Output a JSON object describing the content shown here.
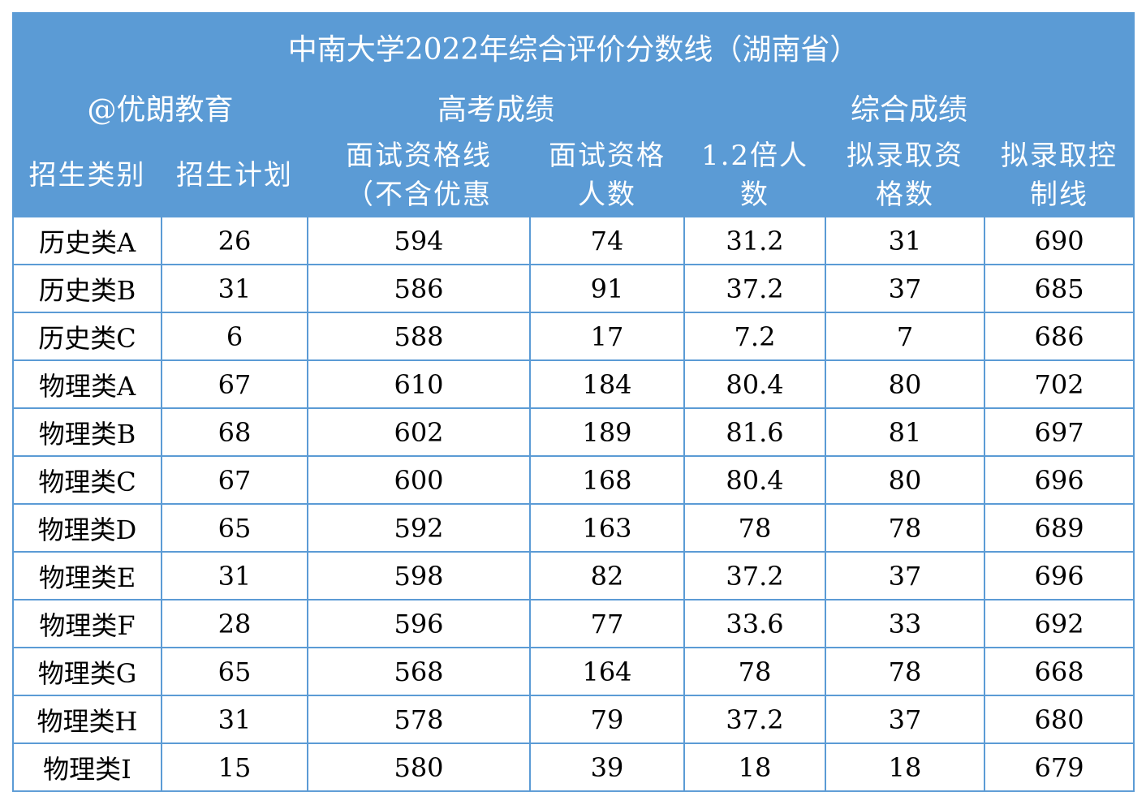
{
  "title": "中南大学2022年综合评价分数线（湖南省）",
  "groups": [
    {
      "label": "@优朗教育",
      "span": 2
    },
    {
      "label": "高考成绩",
      "span": 2
    },
    {
      "label": "综合成绩",
      "span": 3
    }
  ],
  "columns": [
    "招生类别",
    "招生计划",
    "面试资格线（不含优惠",
    "面试资格人数",
    "1.2倍人数",
    "拟录取资格数",
    "拟录取控制线"
  ],
  "rows": [
    [
      "历史类A",
      "26",
      "594",
      "74",
      "31.2",
      "31",
      "690"
    ],
    [
      "历史类B",
      "31",
      "586",
      "91",
      "37.2",
      "37",
      "685"
    ],
    [
      "历史类C",
      "6",
      "588",
      "17",
      "7.2",
      "7",
      "686"
    ],
    [
      "物理类A",
      "67",
      "610",
      "184",
      "80.4",
      "80",
      "702"
    ],
    [
      "物理类B",
      "68",
      "602",
      "189",
      "81.6",
      "81",
      "697"
    ],
    [
      "物理类C",
      "67",
      "600",
      "168",
      "80.4",
      "80",
      "696"
    ],
    [
      "物理类D",
      "65",
      "592",
      "163",
      "78",
      "78",
      "689"
    ],
    [
      "物理类E",
      "31",
      "598",
      "82",
      "37.2",
      "37",
      "696"
    ],
    [
      "物理类F",
      "28",
      "596",
      "77",
      "33.6",
      "33",
      "692"
    ],
    [
      "物理类G",
      "65",
      "568",
      "164",
      "78",
      "78",
      "668"
    ],
    [
      "物理类H",
      "31",
      "578",
      "79",
      "37.2",
      "37",
      "680"
    ],
    [
      "物理类I",
      "15",
      "580",
      "39",
      "18",
      "18",
      "679"
    ]
  ],
  "colors": {
    "header_bg": "#5b9bd5",
    "header_text": "#ffffff",
    "border": "#5b9bd5"
  }
}
